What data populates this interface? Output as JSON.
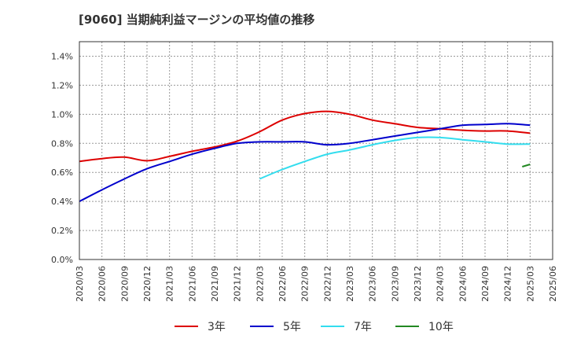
{
  "chart_data": {
    "type": "line",
    "title": "[9060]  当期純利益マージンの平均値の推移",
    "x": [
      "2020/03",
      "2020/06",
      "2020/09",
      "2020/12",
      "2021/03",
      "2021/06",
      "2021/09",
      "2021/12",
      "2022/03",
      "2022/06",
      "2022/09",
      "2022/12",
      "2023/03",
      "2023/06",
      "2023/09",
      "2023/12",
      "2024/03",
      "2024/06",
      "2024/09",
      "2024/12",
      "2025/03",
      "2025/06"
    ],
    "yticks": [
      "0.0%",
      "0.2%",
      "0.4%",
      "0.6%",
      "0.8%",
      "1.0%",
      "1.2%",
      "1.4%"
    ],
    "ylim": [
      0,
      1.5
    ],
    "ytick_step": 0.2,
    "grid": true,
    "legend_position": "bottom",
    "series": [
      {
        "name": "3年",
        "color": "#dd0000",
        "values": [
          0.675,
          0.695,
          0.705,
          0.68,
          0.71,
          0.745,
          0.775,
          0.815,
          0.88,
          0.96,
          1.005,
          1.02,
          1.0,
          0.96,
          0.935,
          0.91,
          0.9,
          0.89,
          0.885,
          0.885,
          0.87,
          null
        ]
      },
      {
        "name": "5年",
        "color": "#0000cc",
        "values": [
          0.4,
          0.48,
          0.555,
          0.625,
          0.675,
          0.725,
          0.765,
          0.8,
          0.81,
          0.81,
          0.81,
          0.79,
          0.8,
          0.825,
          0.85,
          0.875,
          0.9,
          0.925,
          0.93,
          0.935,
          0.925,
          null
        ]
      },
      {
        "name": "7年",
        "color": "#33ddee",
        "values": [
          null,
          null,
          null,
          null,
          null,
          null,
          null,
          null,
          0.555,
          0.62,
          0.675,
          0.725,
          0.755,
          0.79,
          0.82,
          0.84,
          0.84,
          0.825,
          0.81,
          0.795,
          0.795,
          null
        ]
      },
      {
        "name": "10年",
        "color": "#228822",
        "values": [
          null,
          null,
          null,
          null,
          null,
          null,
          null,
          null,
          null,
          null,
          null,
          null,
          null,
          null,
          null,
          null,
          null,
          null,
          null,
          null,
          0.655,
          null
        ]
      }
    ]
  }
}
